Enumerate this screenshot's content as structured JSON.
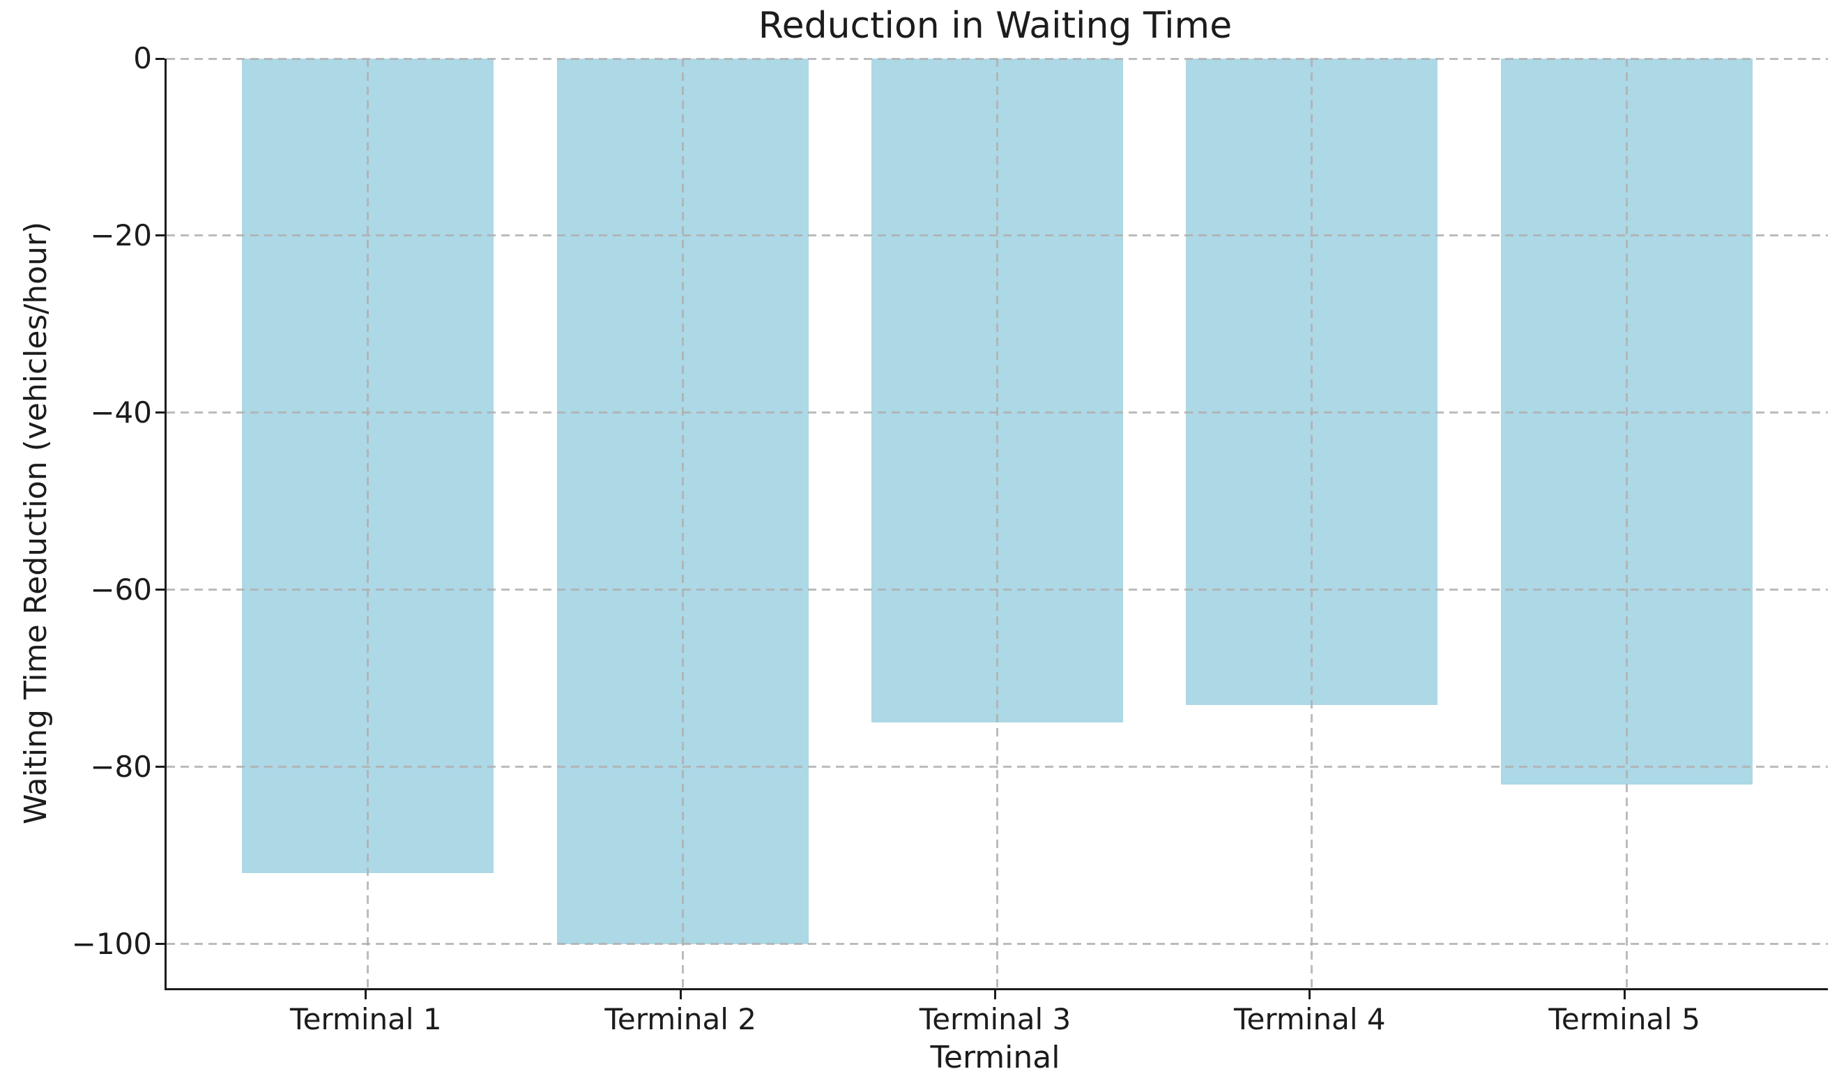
{
  "chart_data": {
    "type": "bar",
    "title": "Reduction in Waiting Time",
    "xlabel": "Terminal",
    "ylabel": "Waiting Time Reduction (vehicles/hour)",
    "categories": [
      "Terminal 1",
      "Terminal 2",
      "Terminal 3",
      "Terminal 4",
      "Terminal 5"
    ],
    "values": [
      -92,
      -100,
      -75,
      -73,
      -82
    ],
    "ylim": [
      -105,
      0
    ],
    "xlim": [
      -0.64,
      4.64
    ],
    "yticks": [
      0,
      -20,
      -40,
      -60,
      -80,
      -100
    ],
    "ytick_labels": [
      "0",
      "−20",
      "−40",
      "−60",
      "−80",
      "−100"
    ],
    "bar_color": "#ADD8E6",
    "bar_width": 0.8,
    "grid": true,
    "grid_style": "dashed",
    "grid_color": "#b0b0b0",
    "legend": "none",
    "axis_color": "#1c1c1c"
  }
}
